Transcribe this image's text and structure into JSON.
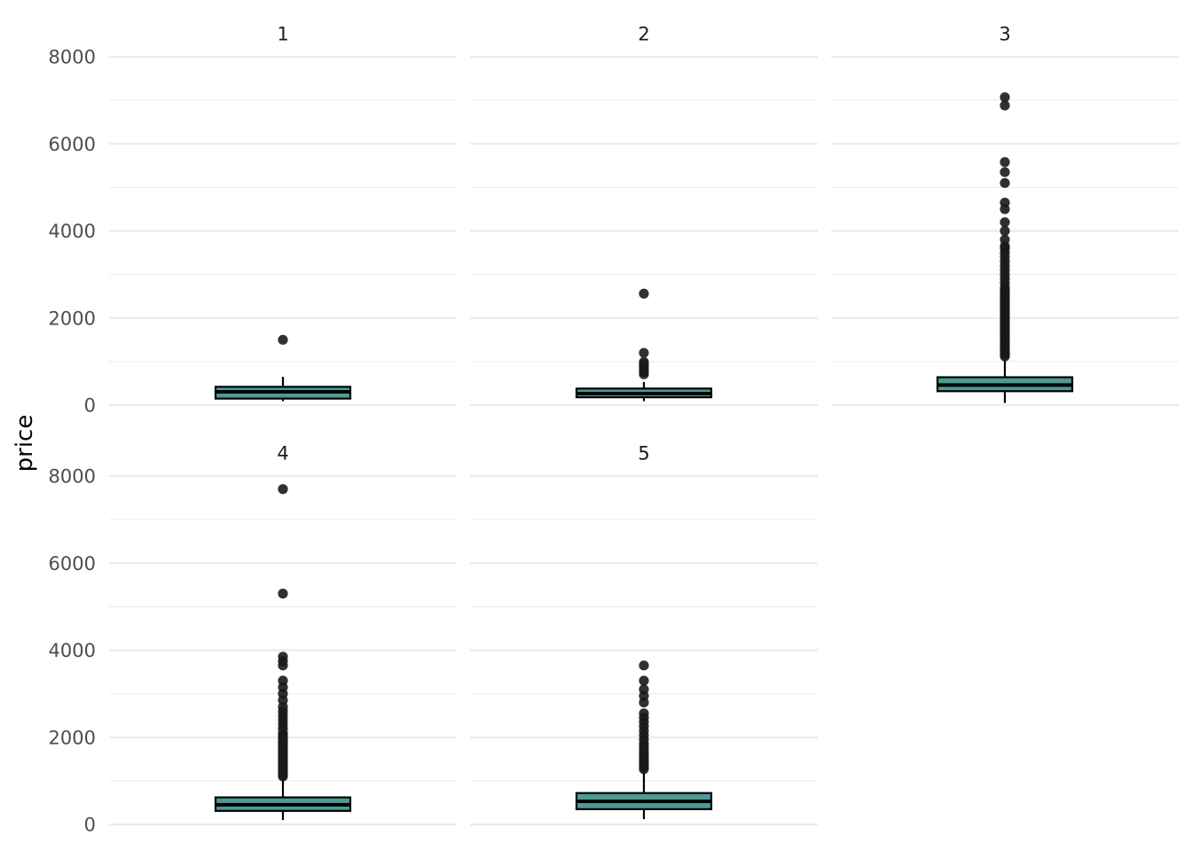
{
  "chart_data": {
    "type": "boxplot",
    "title": "",
    "xlabel": "",
    "ylabel": "price",
    "facet_layout": "3 columns x 2 rows",
    "ylim": [
      0,
      8000
    ],
    "y_ticks": [
      0,
      2000,
      4000,
      6000,
      8000
    ],
    "y_tick_labels": [
      "0",
      "2000",
      "4000",
      "6000",
      "8000"
    ],
    "grid": true,
    "legend": "none",
    "colors": {
      "box_fill": "#4e9a96",
      "box_line": "#000000",
      "outlier": "#1a1a1a",
      "grid": "#ebebeb"
    },
    "facets": [
      {
        "label": "1",
        "whisker_low": 90,
        "q1": 150,
        "median": 305,
        "q3": 420,
        "whisker_high": 650,
        "outliers": [
          1500
        ]
      },
      {
        "label": "2",
        "whisker_low": 90,
        "q1": 180,
        "median": 265,
        "q3": 380,
        "whisker_high": 530,
        "outliers": [
          710,
          760,
          820,
          880,
          940,
          990,
          1200,
          2560
        ]
      },
      {
        "label": "3",
        "whisker_low": 50,
        "q1": 320,
        "median": 460,
        "q3": 640,
        "whisker_high": 1090,
        "outliers": [
          1120,
          1160,
          1200,
          1250,
          1300,
          1350,
          1400,
          1450,
          1500,
          1550,
          1600,
          1650,
          1700,
          1750,
          1800,
          1850,
          1900,
          1950,
          2000,
          2050,
          2100,
          2150,
          2200,
          2250,
          2300,
          2350,
          2400,
          2450,
          2500,
          2550,
          2600,
          2650,
          2700,
          2800,
          2900,
          3000,
          3100,
          3200,
          3300,
          3400,
          3500,
          3600,
          3650,
          3800,
          4000,
          4200,
          4500,
          4650,
          5100,
          5350,
          5580,
          6880,
          7070
        ]
      },
      {
        "label": "4",
        "whisker_low": 100,
        "q1": 310,
        "median": 450,
        "q3": 620,
        "whisker_high": 1060,
        "outliers": [
          1100,
          1150,
          1200,
          1250,
          1300,
          1350,
          1400,
          1450,
          1500,
          1550,
          1600,
          1650,
          1700,
          1750,
          1800,
          1850,
          1900,
          1950,
          2000,
          2050,
          2100,
          2200,
          2300,
          2400,
          2500,
          2600,
          2700,
          2850,
          3000,
          3150,
          3300,
          3650,
          3750,
          3850,
          5300,
          7700
        ]
      },
      {
        "label": "5",
        "whisker_low": 120,
        "q1": 350,
        "median": 530,
        "q3": 720,
        "whisker_high": 1230,
        "outliers": [
          1270,
          1320,
          1380,
          1440,
          1500,
          1560,
          1620,
          1700,
          1780,
          1850,
          1950,
          2050,
          2150,
          2250,
          2350,
          2450,
          2550,
          2800,
          2950,
          3100,
          3300,
          3650
        ]
      }
    ]
  }
}
